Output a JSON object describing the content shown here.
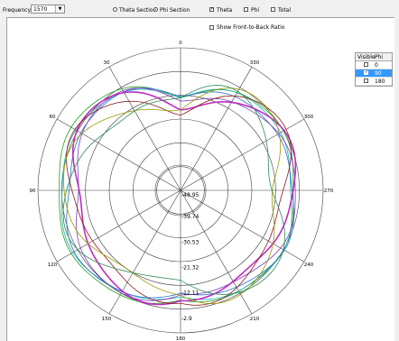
{
  "toolbar": {
    "frequency_label": "Frequency:",
    "frequency_value": "1570",
    "theta_section_label": "Theta Section",
    "phi_section_label": "Phi Section",
    "theta_label": "Theta",
    "phi_label": "Phi",
    "total_label": "Total"
  },
  "options": {
    "front_to_back_label": "Show Front-to-Back Ratio"
  },
  "visibility_table": {
    "headers": [
      "Visible",
      "Phi"
    ],
    "rows": [
      {
        "phi": "0",
        "visible": false,
        "selected": false
      },
      {
        "phi": "90",
        "visible": true,
        "selected": true
      },
      {
        "phi": "180",
        "visible": false,
        "selected": false
      }
    ]
  },
  "polar": {
    "angle_labels": [
      "0",
      "330",
      "300",
      "270",
      "240",
      "210",
      "180",
      "150",
      "120",
      "90",
      "60",
      "30"
    ],
    "radial_labels": [
      "-48.95",
      "-39.74",
      "-30.53",
      "-21.32",
      "-12.11",
      "-2.9"
    ],
    "grid_color": "#404040",
    "trace_colors": [
      "#1fa01f",
      "#20b2aa",
      "#2b6cd8",
      "#7b3fb8",
      "#c02cc0",
      "#8b1a1a",
      "#9a9a00",
      "#2e8b57"
    ]
  }
}
